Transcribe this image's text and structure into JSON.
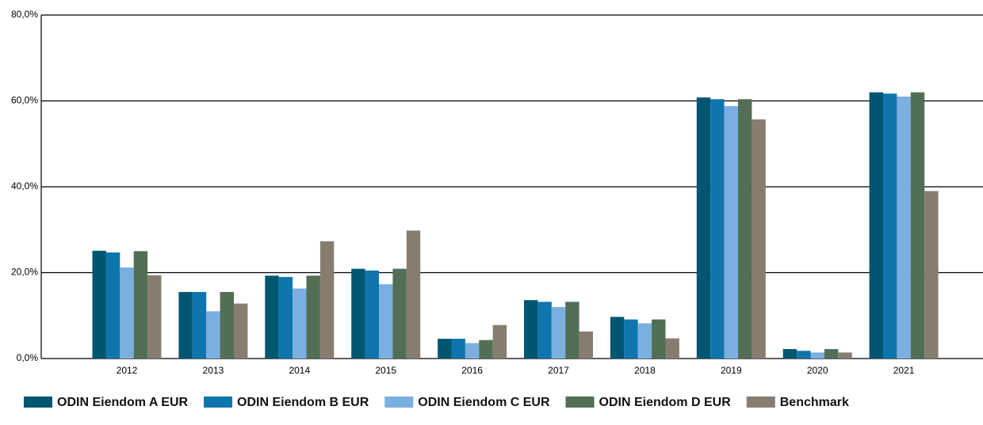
{
  "chart_data": {
    "type": "bar",
    "categories": [
      "2012",
      "2013",
      "2014",
      "2015",
      "2016",
      "2017",
      "2018",
      "2019",
      "2020",
      "2021"
    ],
    "series": [
      {
        "name": "ODIN Eiendom A EUR",
        "color": "#005670",
        "values": [
          25.1,
          15.5,
          19.3,
          20.9,
          4.6,
          13.6,
          9.7,
          60.8,
          2.2,
          62.0
        ]
      },
      {
        "name": "ODIN Eiendom B EUR",
        "color": "#0f75ad",
        "values": [
          24.7,
          15.5,
          19.0,
          20.5,
          4.6,
          13.2,
          9.1,
          60.4,
          1.8,
          61.7
        ]
      },
      {
        "name": "ODIN Eiendom C EUR",
        "color": "#7aafe0",
        "values": [
          21.2,
          11.0,
          16.3,
          17.3,
          3.6,
          12.0,
          8.2,
          58.8,
          1.4,
          61.0
        ]
      },
      {
        "name": "ODIN Eiendom D EUR",
        "color": "#526e55",
        "values": [
          25.0,
          15.5,
          19.3,
          20.9,
          4.3,
          13.2,
          9.1,
          60.4,
          2.2,
          62.0
        ]
      },
      {
        "name": "Benchmark",
        "color": "#867d70",
        "values": [
          19.4,
          12.8,
          27.3,
          29.8,
          7.8,
          6.3,
          4.7,
          55.7,
          1.4,
          39.0
        ]
      }
    ],
    "ylim": [
      0,
      80
    ],
    "yticks": [
      {
        "value": 0,
        "label": "0,0%"
      },
      {
        "value": 20,
        "label": "20,0%"
      },
      {
        "value": 40,
        "label": "40,0%"
      },
      {
        "value": 60,
        "label": "60,0%"
      },
      {
        "value": 80,
        "label": "80,0%"
      }
    ],
    "grid": true,
    "legend": "bottom"
  }
}
